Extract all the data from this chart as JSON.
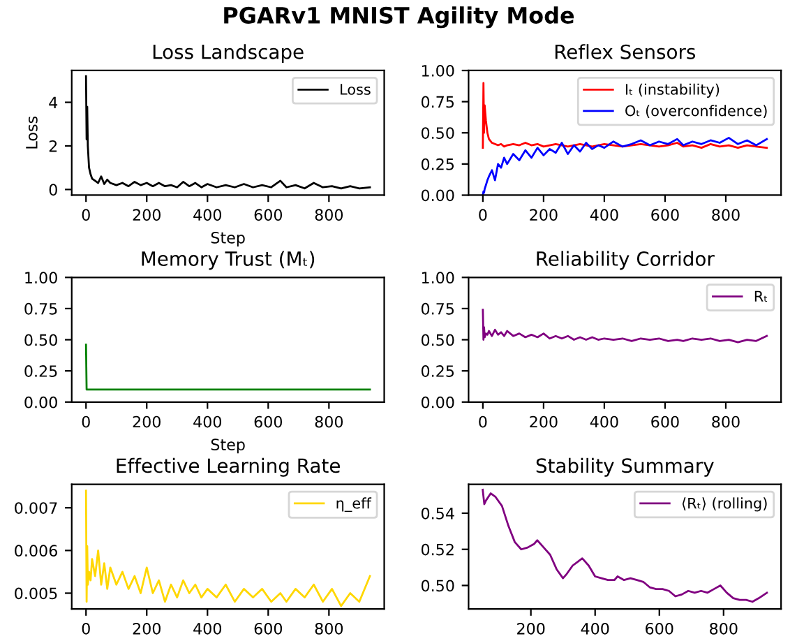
{
  "chart_data": [
    {
      "type": "line",
      "title": "Loss Landscape",
      "xlabel": "Step",
      "ylabel": "Loss",
      "annotations": [
        "PGARv1 MNIST Agility Mode"
      ],
      "x": [
        0,
        2,
        4,
        6,
        10,
        15,
        20,
        30,
        40,
        50,
        60,
        70,
        80,
        100,
        120,
        140,
        160,
        180,
        200,
        220,
        240,
        260,
        280,
        300,
        320,
        340,
        360,
        380,
        400,
        430,
        460,
        490,
        520,
        550,
        580,
        610,
        640,
        660,
        690,
        720,
        750,
        780,
        810,
        840,
        870,
        900,
        935
      ],
      "series": [
        {
          "name": "Loss",
          "color": "#000000",
          "values": [
            5.2,
            2.3,
            3.8,
            2.0,
            1.0,
            0.7,
            0.5,
            0.4,
            0.3,
            0.6,
            0.25,
            0.45,
            0.3,
            0.2,
            0.3,
            0.15,
            0.35,
            0.2,
            0.3,
            0.15,
            0.3,
            0.15,
            0.2,
            0.1,
            0.35,
            0.15,
            0.3,
            0.1,
            0.25,
            0.1,
            0.2,
            0.1,
            0.25,
            0.1,
            0.2,
            0.1,
            0.4,
            0.1,
            0.2,
            0.05,
            0.3,
            0.1,
            0.15,
            0.05,
            0.15,
            0.05,
            0.1
          ]
        }
      ],
      "xlim": [
        -47,
        982
      ],
      "xticks": [
        0,
        200,
        400,
        600,
        800
      ],
      "ylim": [
        -0.26,
        5.46
      ],
      "yticks": [
        0,
        2,
        4
      ],
      "legend": "top right"
    },
    {
      "type": "line",
      "title": "Reflex Sensors",
      "x": [
        0,
        2,
        4,
        6,
        10,
        15,
        20,
        30,
        40,
        50,
        60,
        70,
        80,
        100,
        120,
        140,
        160,
        180,
        200,
        220,
        240,
        260,
        280,
        300,
        320,
        340,
        360,
        380,
        400,
        430,
        460,
        490,
        520,
        550,
        580,
        610,
        640,
        660,
        690,
        720,
        750,
        780,
        810,
        840,
        870,
        900,
        935
      ],
      "series": [
        {
          "name": "Iₜ (instability)",
          "color": "#ff0000",
          "values": [
            0.38,
            0.9,
            0.5,
            0.72,
            0.6,
            0.5,
            0.45,
            0.42,
            0.41,
            0.4,
            0.41,
            0.39,
            0.4,
            0.41,
            0.4,
            0.42,
            0.4,
            0.41,
            0.39,
            0.4,
            0.41,
            0.4,
            0.39,
            0.4,
            0.41,
            0.4,
            0.39,
            0.4,
            0.41,
            0.4,
            0.39,
            0.4,
            0.41,
            0.4,
            0.39,
            0.4,
            0.42,
            0.39,
            0.4,
            0.38,
            0.41,
            0.39,
            0.4,
            0.38,
            0.4,
            0.39,
            0.38
          ]
        },
        {
          "name": "Oₜ (overconfidence)",
          "color": "#0000ff",
          "values": [
            0.0,
            0.03,
            0.02,
            0.05,
            0.08,
            0.12,
            0.15,
            0.2,
            0.12,
            0.25,
            0.22,
            0.3,
            0.25,
            0.33,
            0.28,
            0.36,
            0.3,
            0.38,
            0.32,
            0.37,
            0.34,
            0.42,
            0.33,
            0.4,
            0.35,
            0.42,
            0.37,
            0.4,
            0.38,
            0.43,
            0.39,
            0.41,
            0.44,
            0.4,
            0.43,
            0.41,
            0.45,
            0.4,
            0.43,
            0.41,
            0.44,
            0.42,
            0.46,
            0.41,
            0.44,
            0.4,
            0.45
          ]
        }
      ],
      "xlim": [
        -47,
        982
      ],
      "xticks": [
        0,
        200,
        400,
        600,
        800
      ],
      "ylim": [
        0,
        1
      ],
      "yticks": [
        {
          "value": 0,
          "label": "0.00"
        },
        0.25,
        {
          "value": 0.5,
          "label": "0.50"
        },
        0.75,
        {
          "value": 1,
          "label": "1.00"
        }
      ],
      "legend": "top right"
    },
    {
      "type": "line",
      "title": "Memory Trust (Mₜ)",
      "xlabel": "Step",
      "x": [
        0,
        2,
        935
      ],
      "series": [
        {
          "color": "#008000",
          "values": [
            0.46,
            0.1,
            0.1
          ]
        }
      ],
      "xlim": [
        -47,
        982
      ],
      "xticks": [
        0,
        200,
        400,
        600,
        800
      ],
      "ylim": [
        0,
        1
      ],
      "yticks": [
        {
          "value": 0,
          "label": "0.00"
        },
        0.25,
        {
          "value": 0.5,
          "label": "0.50"
        },
        0.75,
        {
          "value": 1,
          "label": "1.00"
        }
      ]
    },
    {
      "type": "line",
      "title": "Reliability Corridor",
      "x": [
        0,
        2,
        4,
        6,
        10,
        15,
        20,
        30,
        40,
        50,
        60,
        70,
        80,
        100,
        120,
        140,
        160,
        180,
        200,
        220,
        240,
        260,
        280,
        300,
        320,
        340,
        360,
        380,
        400,
        430,
        460,
        490,
        520,
        550,
        580,
        610,
        640,
        660,
        690,
        720,
        750,
        780,
        810,
        840,
        870,
        900,
        935
      ],
      "series": [
        {
          "name": "Rₜ",
          "color": "#800080",
          "values": [
            0.74,
            0.5,
            0.6,
            0.52,
            0.55,
            0.54,
            0.57,
            0.53,
            0.58,
            0.54,
            0.56,
            0.53,
            0.57,
            0.53,
            0.55,
            0.52,
            0.54,
            0.52,
            0.55,
            0.51,
            0.53,
            0.51,
            0.53,
            0.5,
            0.52,
            0.5,
            0.52,
            0.5,
            0.51,
            0.5,
            0.51,
            0.49,
            0.51,
            0.5,
            0.51,
            0.49,
            0.5,
            0.49,
            0.51,
            0.5,
            0.51,
            0.49,
            0.5,
            0.48,
            0.5,
            0.49,
            0.53
          ]
        }
      ],
      "xlim": [
        -47,
        982
      ],
      "xticks": [
        0,
        200,
        400,
        600,
        800
      ],
      "ylim": [
        0,
        1
      ],
      "yticks": [
        {
          "value": 0,
          "label": "0.00"
        },
        0.25,
        {
          "value": 0.5,
          "label": "0.50"
        },
        0.75,
        {
          "value": 1,
          "label": "1.00"
        }
      ],
      "legend": "top right"
    },
    {
      "type": "line",
      "title": "Effective Learning Rate",
      "x": [
        0,
        2,
        4,
        6,
        10,
        15,
        20,
        30,
        40,
        50,
        60,
        70,
        80,
        100,
        120,
        140,
        160,
        180,
        200,
        220,
        240,
        260,
        280,
        300,
        320,
        340,
        360,
        380,
        400,
        430,
        460,
        490,
        520,
        550,
        580,
        610,
        640,
        660,
        690,
        720,
        750,
        780,
        810,
        840,
        870,
        900,
        935
      ],
      "series": [
        {
          "name": "η_eff",
          "color": "#ffd700",
          "values": [
            0.0074,
            0.0048,
            0.0061,
            0.0052,
            0.0055,
            0.0053,
            0.0058,
            0.0054,
            0.006,
            0.0052,
            0.0057,
            0.0051,
            0.0056,
            0.0052,
            0.0055,
            0.0051,
            0.0054,
            0.005,
            0.0056,
            0.005,
            0.0053,
            0.0048,
            0.0052,
            0.0049,
            0.0053,
            0.005,
            0.0052,
            0.0049,
            0.0051,
            0.0049,
            0.0052,
            0.0048,
            0.0051,
            0.0049,
            0.0051,
            0.0048,
            0.005,
            0.0048,
            0.0051,
            0.0049,
            0.0052,
            0.0048,
            0.0051,
            0.0047,
            0.005,
            0.0048,
            0.0054
          ]
        }
      ],
      "xlim": [
        -47,
        982
      ],
      "xticks": [
        0,
        200,
        400,
        600,
        800
      ],
      "ylim": [
        0.00463,
        0.00755
      ],
      "yticks": [
        0.005,
        0.006,
        0.007
      ],
      "legend": "top right"
    },
    {
      "type": "line",
      "title": "Stability Summary",
      "x": [
        50,
        55,
        60,
        75,
        90,
        110,
        130,
        150,
        170,
        190,
        210,
        220,
        240,
        260,
        280,
        300,
        310,
        330,
        345,
        360,
        380,
        400,
        420,
        440,
        460,
        470,
        490,
        510,
        530,
        550,
        570,
        590,
        610,
        630,
        650,
        670,
        690,
        710,
        730,
        750,
        770,
        790,
        810,
        830,
        850,
        870,
        890,
        910,
        935
      ],
      "series": [
        {
          "name": "⟨Rₜ⟩ (rolling)",
          "color": "#800080",
          "values": [
            0.553,
            0.545,
            0.547,
            0.551,
            0.549,
            0.544,
            0.533,
            0.524,
            0.52,
            0.521,
            0.523,
            0.525,
            0.521,
            0.517,
            0.509,
            0.504,
            0.506,
            0.511,
            0.513,
            0.515,
            0.511,
            0.505,
            0.504,
            0.503,
            0.503,
            0.505,
            0.503,
            0.504,
            0.503,
            0.502,
            0.499,
            0.498,
            0.498,
            0.497,
            0.494,
            0.495,
            0.497,
            0.496,
            0.497,
            0.496,
            0.498,
            0.5,
            0.496,
            0.493,
            0.492,
            0.492,
            0.491,
            0.493,
            0.496
          ]
        }
      ],
      "xlim": [
        6,
        979
      ],
      "xticks": [
        200,
        400,
        600,
        800
      ],
      "ylim": [
        0.487,
        0.556
      ],
      "yticks": [
        {
          "value": 0.5,
          "label": "0.50"
        },
        0.52,
        0.54
      ],
      "legend": "top right"
    }
  ]
}
